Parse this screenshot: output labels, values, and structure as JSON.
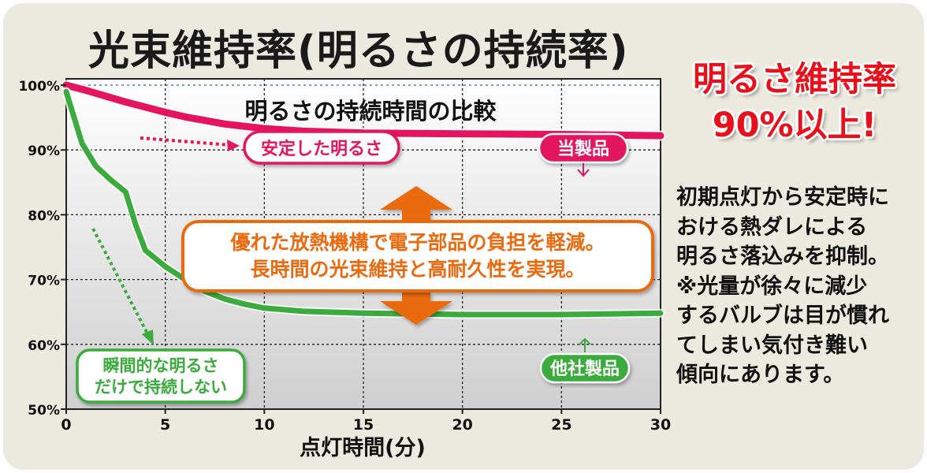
{
  "title": "光束維持率(明るさの持続率)",
  "headline": [
    "明るさ維持率",
    "90%以上!"
  ],
  "description": [
    "初期点灯から安定時に",
    "おける熱ダレによる",
    "明るさ落込みを抑制。",
    "※光量が徐々に減少",
    "するバルブは目が慣れ",
    "てしまい気付き難い",
    "傾向にあります。"
  ],
  "colors": {
    "our_product": "#e4145e",
    "other_product": "#3aab3c",
    "accent_orange": "#ea6a10",
    "reference_line": "#3a7fd0"
  },
  "chart_data": {
    "type": "line",
    "title": "明るさの持続時間の比較",
    "xlabel": "点灯時間(分)",
    "ylabel": "",
    "xlim": [
      0,
      30
    ],
    "ylim": [
      50,
      100
    ],
    "xticks": [
      "0",
      "5",
      "10",
      "15",
      "20",
      "25",
      "30"
    ],
    "yticks": [
      "50%",
      "60%",
      "70%",
      "80%",
      "90%",
      "100%"
    ],
    "grid": true,
    "reference_line": {
      "y": 100,
      "style": "dashed"
    },
    "series": [
      {
        "name": "当製品",
        "color": "#e4145e",
        "x": [
          0,
          1,
          2,
          3,
          4,
          5,
          6,
          8,
          10,
          12,
          15,
          20,
          25,
          30
        ],
        "y": [
          100,
          99.2,
          98.3,
          97.4,
          96.6,
          95.8,
          95.1,
          94,
          93.3,
          92.9,
          92.6,
          92.5,
          92.4,
          92.2
        ]
      },
      {
        "name": "他社製品",
        "color": "#3aab3c",
        "x": [
          0,
          0.3,
          0.8,
          1.5,
          2.2,
          3,
          3.5,
          4,
          5,
          6,
          7,
          8,
          9,
          10,
          12,
          15,
          20,
          25,
          30
        ],
        "y": [
          99,
          96,
          91,
          87.5,
          85.5,
          83.5,
          78.5,
          74.5,
          72,
          70,
          68.2,
          67,
          66.2,
          65.6,
          65.1,
          64.8,
          64.6,
          64.6,
          64.8
        ]
      }
    ],
    "annotations": {
      "stable": "安定した明るさ",
      "momentary": [
        "瞬間的な明るさ",
        "だけで持続しない"
      ],
      "center": [
        "優れた放熱機構で電子部品の負担を軽減。",
        "長時間の光束維持と高耐久性を実現。"
      ]
    }
  }
}
